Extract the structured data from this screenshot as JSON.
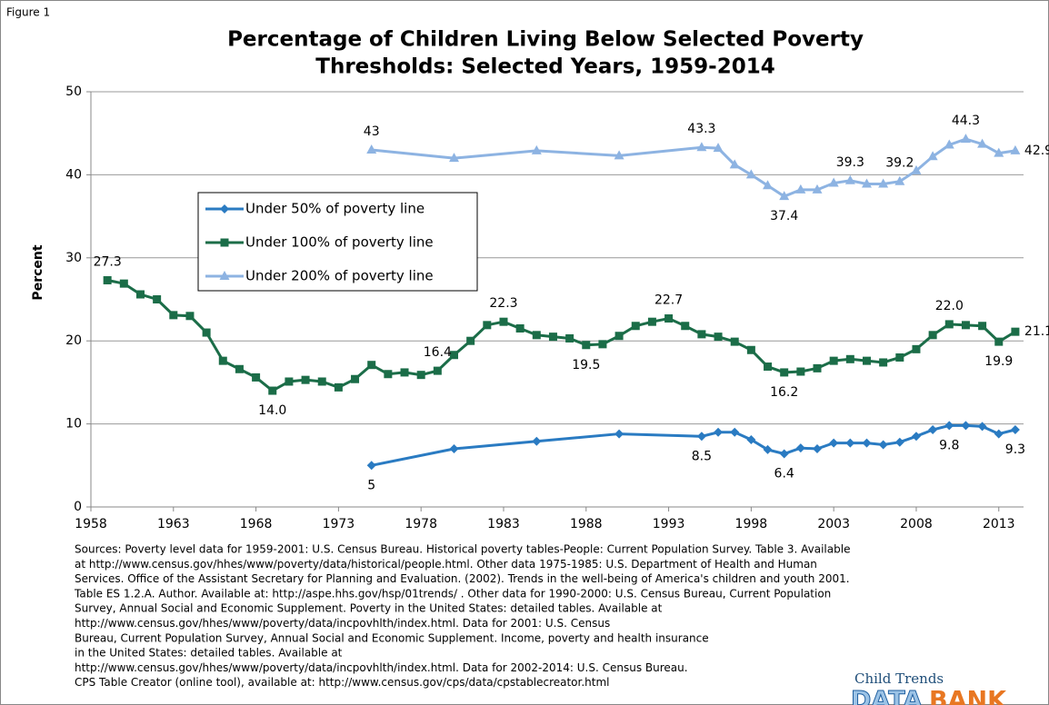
{
  "chart_data": {
    "type": "line",
    "figure_label": "Figure 1",
    "title": [
      "Percentage of Children Living Below Selected Poverty",
      "Thresholds: Selected Years, 1959-2014"
    ],
    "y_label": "Percent",
    "xlim": [
      1958,
      2014.5
    ],
    "xticks": [
      1958,
      1963,
      1968,
      1973,
      1978,
      1983,
      1988,
      1993,
      1998,
      2003,
      2008,
      2013
    ],
    "ylim": [
      0,
      50
    ],
    "yticks": [
      0,
      10,
      20,
      30,
      40,
      50
    ],
    "grid": true,
    "legend": "upper left",
    "series": [
      {
        "name": "Under 50% of poverty line",
        "color": "#2a7bc2",
        "marker": "diamond",
        "x": [
          1975,
          1980,
          1985,
          1990,
          1995,
          1996,
          1997,
          1998,
          1999,
          2000,
          2001,
          2002,
          2003,
          2004,
          2005,
          2006,
          2007,
          2008,
          2009,
          2010,
          2011,
          2012,
          2013,
          2014
        ],
        "values": [
          5.0,
          7.0,
          7.9,
          8.8,
          8.5,
          9.0,
          9.0,
          8.1,
          6.9,
          6.4,
          7.1,
          7.0,
          7.7,
          7.7,
          7.7,
          7.5,
          7.8,
          8.5,
          9.3,
          9.8,
          9.8,
          9.7,
          8.8,
          9.3
        ],
        "value_labels": [
          "5",
          null,
          null,
          null,
          "8.5",
          null,
          null,
          null,
          null,
          "6.4",
          null,
          null,
          null,
          null,
          null,
          null,
          null,
          null,
          null,
          "9.8",
          null,
          null,
          null,
          "9.3"
        ]
      },
      {
        "name": "Under 100% of poverty line",
        "color": "#1b6d48",
        "marker": "square",
        "x": [
          1959,
          1960,
          1961,
          1962,
          1963,
          1964,
          1965,
          1966,
          1967,
          1968,
          1969,
          1970,
          1971,
          1972,
          1973,
          1974,
          1975,
          1976,
          1977,
          1978,
          1979,
          1980,
          1981,
          1982,
          1983,
          1984,
          1985,
          1986,
          1987,
          1988,
          1989,
          1990,
          1991,
          1992,
          1993,
          1994,
          1995,
          1996,
          1997,
          1998,
          1999,
          2000,
          2001,
          2002,
          2003,
          2004,
          2005,
          2006,
          2007,
          2008,
          2009,
          2010,
          2011,
          2012,
          2013,
          2014
        ],
        "values": [
          27.3,
          26.9,
          25.6,
          25.0,
          23.1,
          23.0,
          21.0,
          17.6,
          16.6,
          15.6,
          14.0,
          15.1,
          15.3,
          15.1,
          14.4,
          15.4,
          17.1,
          16.0,
          16.2,
          15.9,
          16.4,
          18.3,
          20.0,
          21.9,
          22.3,
          21.5,
          20.7,
          20.5,
          20.3,
          19.5,
          19.6,
          20.6,
          21.8,
          22.3,
          22.7,
          21.8,
          20.8,
          20.5,
          19.9,
          18.9,
          16.9,
          16.2,
          16.3,
          16.7,
          17.6,
          17.8,
          17.6,
          17.4,
          18.0,
          19.0,
          20.7,
          22.0,
          21.9,
          21.8,
          19.9,
          21.1
        ],
        "value_labels": [
          "27.3",
          null,
          null,
          null,
          null,
          null,
          null,
          null,
          null,
          null,
          "14.0",
          null,
          null,
          null,
          null,
          null,
          null,
          null,
          null,
          null,
          "16.4",
          null,
          null,
          null,
          "22.3",
          null,
          null,
          null,
          null,
          "19.5",
          null,
          null,
          null,
          null,
          "22.7",
          null,
          null,
          null,
          null,
          null,
          null,
          "16.2",
          null,
          null,
          null,
          null,
          null,
          null,
          null,
          null,
          null,
          "22.0",
          null,
          null,
          "19.9",
          "21.1"
        ]
      },
      {
        "name": "Under 200% of poverty line",
        "color": "#8db3e2",
        "marker": "triangle",
        "x": [
          1975,
          1980,
          1985,
          1990,
          1995,
          1996,
          1997,
          1998,
          1999,
          2000,
          2001,
          2002,
          2003,
          2004,
          2005,
          2006,
          2007,
          2008,
          2009,
          2010,
          2011,
          2012,
          2013,
          2014
        ],
        "values": [
          43,
          42.0,
          42.9,
          42.3,
          43.3,
          43.2,
          41.2,
          40.0,
          38.7,
          37.4,
          38.2,
          38.2,
          39.0,
          39.3,
          38.9,
          38.9,
          39.2,
          40.5,
          42.2,
          43.6,
          44.3,
          43.7,
          42.6,
          42.9
        ],
        "value_labels": [
          "43",
          null,
          null,
          null,
          "43.3",
          null,
          null,
          null,
          null,
          "37.4",
          null,
          null,
          null,
          "39.3",
          null,
          null,
          "39.2",
          null,
          null,
          null,
          "44.3",
          null,
          null,
          "42.9"
        ]
      }
    ],
    "source": [
      "Sources: Poverty level data for 1959-2001: U.S. Census Bureau. Historical poverty tables-People: Current Population Survey. Table 3. Available",
      "at http://www.census.gov/hhes/www/poverty/data/historical/people.html. Other data 1975-1985: U.S. Department of Health and Human",
      "Services. Office of the Assistant Secretary for Planning and Evaluation. (2002). Trends in the well-being of America's children and youth 2001.",
      "Table ES 1.2.A. Author.  Available at: http://aspe.hhs.gov/hsp/01trends/ . Other data for 1990-2000: U.S. Census Bureau, Current Population",
      "Survey, Annual Social and Economic Supplement. Poverty in the United States: detailed tables. Available at",
      "http://www.census.gov/hhes/www/poverty/data/incpovhlth/index.html. Data for 2001: U.S. Census",
      "Bureau, Current Population Survey, Annual Social and Economic Supplement. Income, poverty and health insurance",
      "in the United States: detailed tables. Available at",
      "http://www.census.gov/hhes/www/poverty/data/incpovhlth/index.html. Data for 2002-2014: U.S. Census Bureau.",
      "CPS Table Creator (online tool), available at: http://www.census.gov/cps/data/cpstablecreator.html"
    ],
    "logo": {
      "top": "Child Trends",
      "left": "DATA",
      "right": "BANK"
    }
  }
}
